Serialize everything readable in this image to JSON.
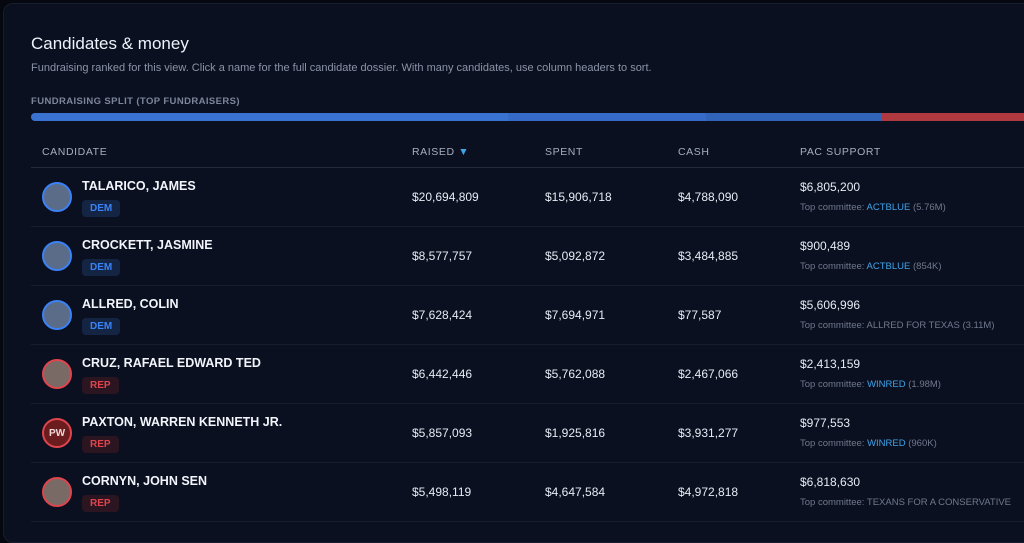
{
  "header": {
    "title": "Candidates & money",
    "subtitle": "Fundraising ranked for this view. Click a name for the full candidate dossier. With many candidates, use column headers to sort.",
    "split_label": "FUNDRAISING SPLIT (TOP FUNDRAISERS)"
  },
  "split": [
    {
      "value": 20694809,
      "color": "#3a72d2"
    },
    {
      "value": 8577757,
      "color": "#356bc6"
    },
    {
      "value": 7628424,
      "color": "#3164b8"
    },
    {
      "value": 6442446,
      "color": "#b0393f"
    }
  ],
  "columns": {
    "candidate": "CANDIDATE",
    "raised": "RAISED",
    "sort_icon": "▼",
    "spent": "SPENT",
    "cash": "CASH",
    "pac": "PAC SUPPORT"
  },
  "pac_prefix": "Top committee: ",
  "rows": [
    {
      "name": "TALARICO, JAMES",
      "party": "DEM",
      "raised": "$20,694,809",
      "spent": "$15,906,718",
      "cash": "$4,788,090",
      "pac": "$6,805,200",
      "committee": "ACTBLUE",
      "committee_amt": " (5.76M)",
      "committee_link": true,
      "initials": ""
    },
    {
      "name": "CROCKETT, JASMINE",
      "party": "DEM",
      "raised": "$8,577,757",
      "spent": "$5,092,872",
      "cash": "$3,484,885",
      "pac": "$900,489",
      "committee": "ACTBLUE",
      "committee_amt": " (854K)",
      "committee_link": true,
      "initials": ""
    },
    {
      "name": "ALLRED, COLIN",
      "party": "DEM",
      "raised": "$7,628,424",
      "spent": "$7,694,971",
      "cash": "$77,587",
      "pac": "$5,606,996",
      "committee": "ALLRED FOR TEXAS",
      "committee_amt": " (3.11M)",
      "committee_link": false,
      "initials": ""
    },
    {
      "name": "CRUZ, RAFAEL EDWARD TED",
      "party": "REP",
      "raised": "$6,442,446",
      "spent": "$5,762,088",
      "cash": "$2,467,066",
      "pac": "$2,413,159",
      "committee": "WINRED",
      "committee_amt": " (1.98M)",
      "committee_link": true,
      "initials": ""
    },
    {
      "name": "PAXTON, WARREN KENNETH JR.",
      "party": "REP",
      "raised": "$5,857,093",
      "spent": "$1,925,816",
      "cash": "$3,931,277",
      "pac": "$977,553",
      "committee": "WINRED",
      "committee_amt": " (960K)",
      "committee_link": true,
      "initials": "PW"
    },
    {
      "name": "CORNYN, JOHN SEN",
      "party": "REP",
      "raised": "$5,498,119",
      "spent": "$4,647,584",
      "cash": "$4,972,818",
      "pac": "$6,818,630",
      "committee": "TEXANS FOR A CONSERVATIVE",
      "committee_amt": "",
      "committee_link": false,
      "initials": ""
    }
  ],
  "colors": {
    "dem": "#3b82f6",
    "rep": "#e0454d",
    "link": "#3fa3e8"
  }
}
